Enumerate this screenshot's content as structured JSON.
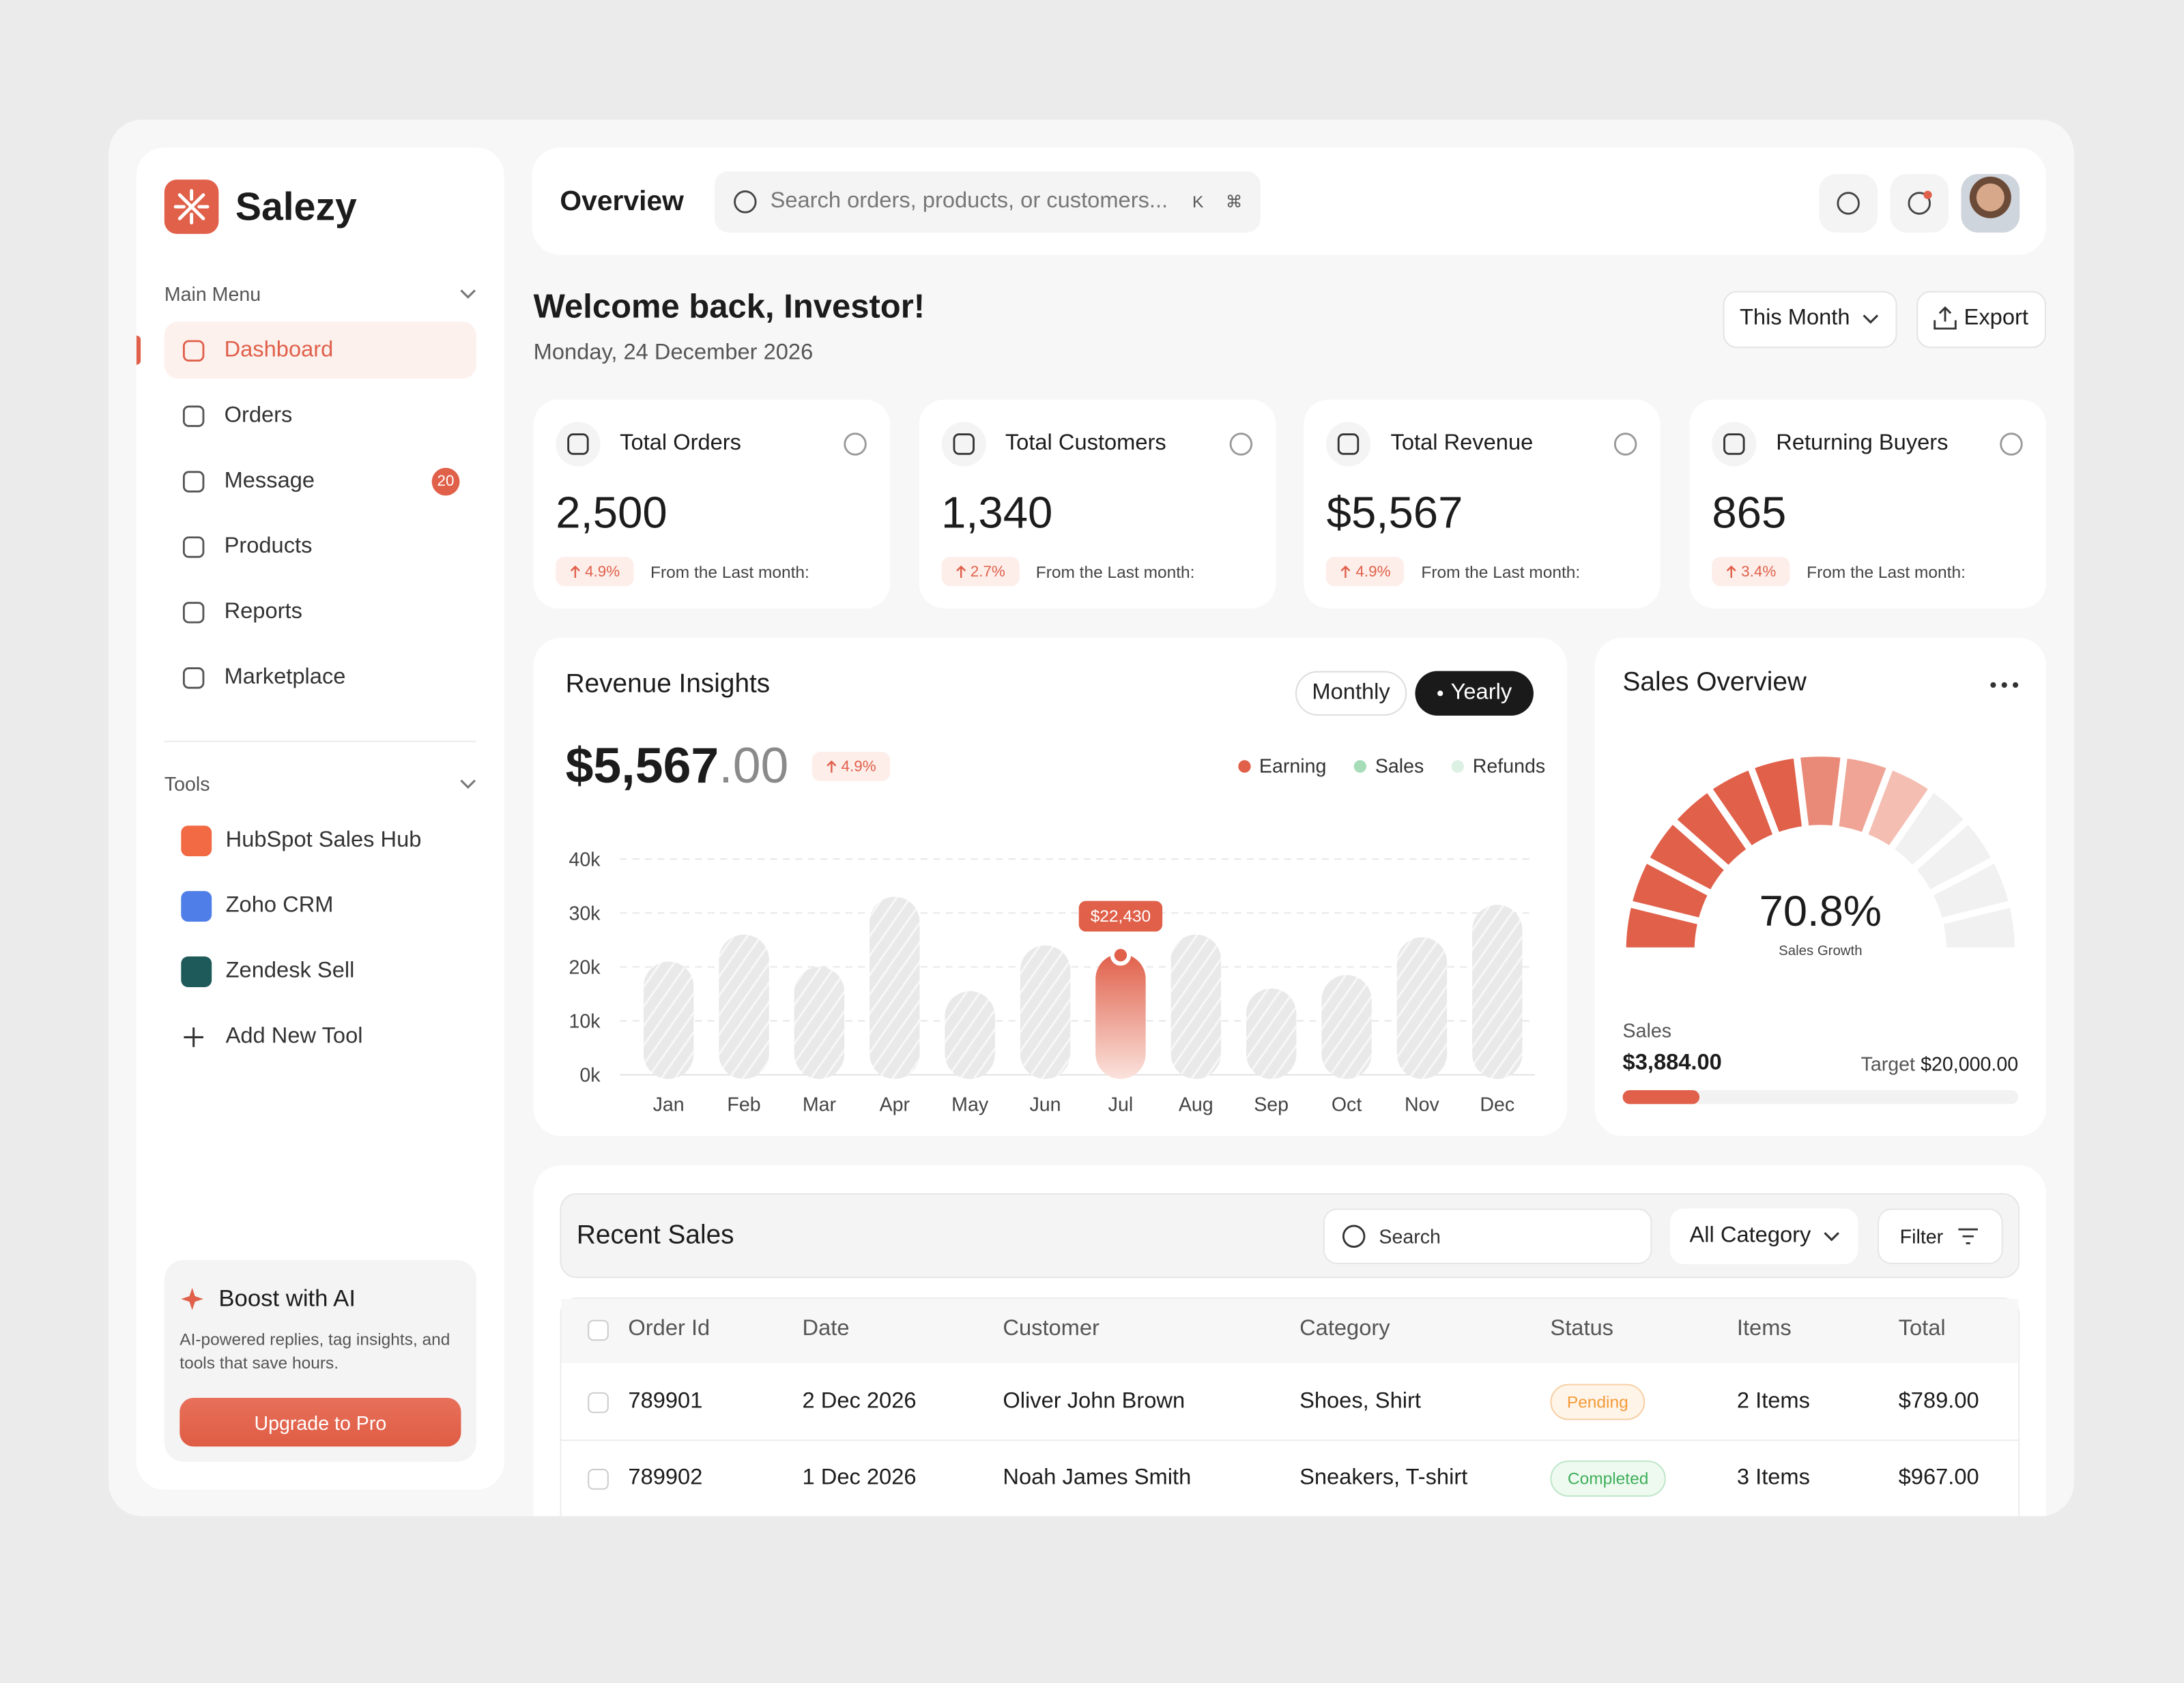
{
  "sidebar": {
    "brand": "Salezy",
    "main_menu": "Main Menu",
    "menu": [
      {
        "label": "Dashboard"
      },
      {
        "label": "Orders"
      },
      {
        "label": "Message",
        "badge": 20
      },
      {
        "label": "Products"
      },
      {
        "label": "Reports"
      },
      {
        "label": "Marketplace"
      }
    ],
    "tools_title": "Tools",
    "tools": [
      "HubSpot Sales Hub",
      "Zoho CRM",
      "Zendesk Sell",
      "Add New Tool"
    ],
    "promo": {
      "title": "Boost with AI",
      "text": "AI-powered replies, tag insights, and tools that save hours.",
      "button": "Upgrade to Pro"
    }
  },
  "header": {
    "title": "Overview",
    "search": "Search orders, products, or customers...",
    "keys": [
      "K",
      "⌘"
    ]
  },
  "welcome": {
    "title": "Welcome back, Investor!",
    "date": "Monday, 24 December 2026",
    "period": "This Month",
    "export": "Export"
  },
  "stats": [
    {
      "label": "Total Orders",
      "value": "2,500",
      "change": "4.9%",
      "note": "From the Last month:"
    },
    {
      "label": "Total Customers",
      "value": "1,340",
      "change": "2.7%",
      "note": "From the Last month:"
    },
    {
      "label": "Total Revenue",
      "value": "$5,567",
      "change": "4.9%",
      "note": "From the Last month:"
    },
    {
      "label": "Returning Buyers",
      "value": "865",
      "change": "3.4%",
      "note": "From the Last month:"
    }
  ],
  "chart_data": [
    {
      "type": "bar",
      "title": "Revenue Insights",
      "amount": "$5,567",
      "cents": ".00",
      "change": "4.9%",
      "toggles": [
        "Monthly",
        "Yearly"
      ],
      "legend": [
        {
          "name": "Earning",
          "color": "#e0604a"
        },
        {
          "name": "Sales",
          "color": "#a6dcb8"
        },
        {
          "name": "Refunds",
          "color": "#dcf1e3"
        }
      ],
      "categories": [
        "Jan",
        "Feb",
        "Mar",
        "Apr",
        "May",
        "Jun",
        "Jul",
        "Aug",
        "Sep",
        "Oct",
        "Nov",
        "Dec"
      ],
      "values": [
        21000,
        26000,
        20000,
        33000,
        15500,
        24000,
        22430,
        26000,
        16000,
        18500,
        25500,
        31500
      ],
      "value_labels": [
        null,
        null,
        null,
        null,
        null,
        null,
        "$22,430",
        null,
        null,
        null,
        null,
        null
      ],
      "color": "#e0604a",
      "ylim": [
        0,
        40000
      ],
      "yticks": [
        {
          "value": 0,
          "label": "0k"
        },
        {
          "value": 10000,
          "label": "10k"
        },
        {
          "value": 20000,
          "label": "20k"
        },
        {
          "value": 30000,
          "label": "30k"
        },
        {
          "value": 40000,
          "label": "40k"
        }
      ],
      "grid": true
    },
    {
      "type": "gauge",
      "title": "Sales Overview",
      "value": 70.8,
      "value_label": "70.8%",
      "caption": "Sales Growth",
      "ylim": [
        0,
        100
      ],
      "color": "#e0604a",
      "sales_label": "Sales",
      "sales": 3884,
      "sales_text": "$3,884.00",
      "target_label": "Target",
      "target": 20000,
      "target_text": "$20,000.00"
    }
  ],
  "recent_sales": {
    "title": "Recent Sales",
    "search": "Search",
    "category": "All Category",
    "filter": "Filter",
    "columns": [
      "Order Id",
      "Date",
      "Customer",
      "Category",
      "Status",
      "Items",
      "Total"
    ],
    "rows": [
      [
        "789901",
        "2 Dec 2026",
        "Oliver John Brown",
        "Shoes, Shirt",
        "Pending",
        "2 Items",
        "$789.00"
      ],
      [
        "789902",
        "1 Dec 2026",
        "Noah James Smith",
        "Sneakers, T-shirt",
        "Completed",
        "3 Items",
        "$967.00"
      ]
    ]
  }
}
